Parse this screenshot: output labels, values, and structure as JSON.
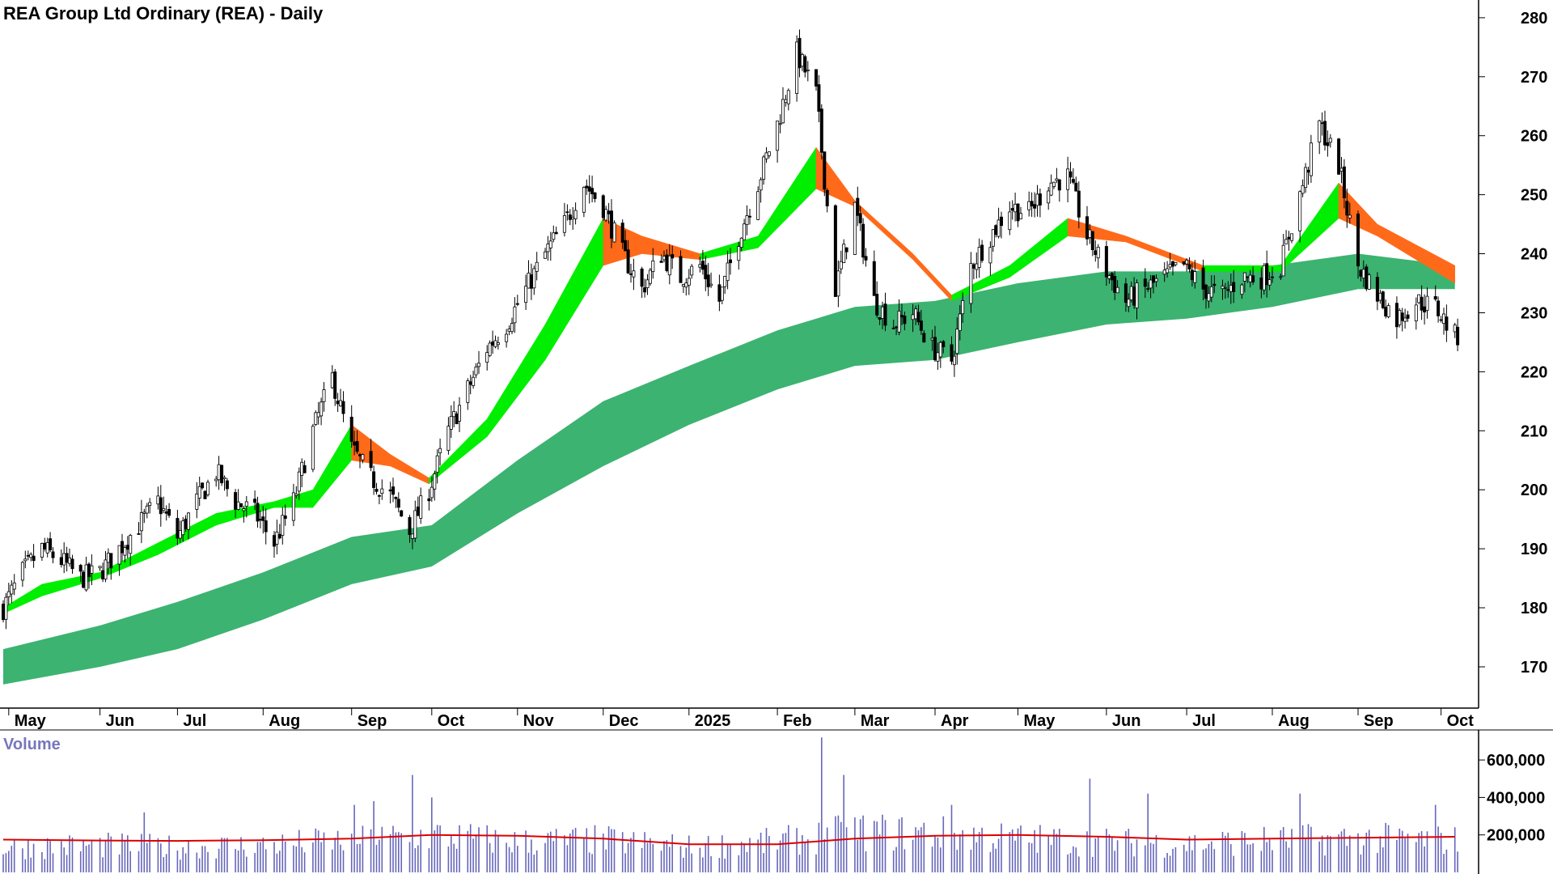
{
  "chart_title": "REA Group Ltd Ordinary (REA) - Daily",
  "volume_title": "Volume",
  "colors": {
    "background": "#ffffff",
    "candle": "#000000",
    "long_term_band": "#3cb371",
    "short_term_band_up": "#00ee00",
    "short_term_band_down": "#ff6a1a",
    "short_term_band_weak": "#ffb6b6",
    "volume_bar": "#6666bb",
    "volume_average": "#dd0000",
    "axis": "#000000"
  },
  "chart_data": [
    {
      "type": "candlestick",
      "title": "REA Group Ltd Ordinary (REA) - Daily",
      "ylim": [
        163,
        283
      ],
      "y_ticks": [
        170,
        180,
        190,
        200,
        210,
        220,
        230,
        240,
        250,
        260,
        270,
        280
      ],
      "x_tick_labels": [
        "May",
        "Jun",
        "Jul",
        "Aug",
        "Sep",
        "Oct",
        "Nov",
        "Dec",
        "2025",
        "Feb",
        "Mar",
        "Apr",
        "May",
        "Jun",
        "Jul",
        "Aug",
        "Sep",
        "Oct"
      ],
      "x_tick_dates": [
        "2024-05-01",
        "2024-06-03",
        "2024-07-01",
        "2024-08-01",
        "2024-09-02",
        "2024-10-01",
        "2024-11-01",
        "2024-12-02",
        "2025-01-02",
        "2025-02-03",
        "2025-03-03",
        "2025-04-01",
        "2025-05-01",
        "2025-06-02",
        "2025-07-01",
        "2025-08-01",
        "2025-09-01",
        "2025-10-01"
      ],
      "x_range": [
        "2024-04-29",
        "2025-10-14"
      ],
      "close_series": {
        "name": "",
        "points": [
          [
            "2024-04-29",
            180
          ],
          [
            "2024-05-06",
            186
          ],
          [
            "2024-05-13",
            190
          ],
          [
            "2024-05-20",
            188
          ],
          [
            "2024-05-27",
            185
          ],
          [
            "2024-06-03",
            186
          ],
          [
            "2024-06-10",
            190
          ],
          [
            "2024-06-17",
            194
          ],
          [
            "2024-06-24",
            198
          ],
          [
            "2024-07-01",
            192
          ],
          [
            "2024-07-08",
            198
          ],
          [
            "2024-07-15",
            203
          ],
          [
            "2024-07-22",
            198
          ],
          [
            "2024-07-29",
            196
          ],
          [
            "2024-08-05",
            191
          ],
          [
            "2024-08-12",
            198
          ],
          [
            "2024-08-19",
            210
          ],
          [
            "2024-08-26",
            219
          ],
          [
            "2024-09-02",
            207
          ],
          [
            "2024-09-09",
            202
          ],
          [
            "2024-09-16",
            199
          ],
          [
            "2024-09-23",
            193
          ],
          [
            "2024-09-30",
            200
          ],
          [
            "2024-10-07",
            210
          ],
          [
            "2024-10-14",
            217
          ],
          [
            "2024-10-21",
            224
          ],
          [
            "2024-10-28",
            228
          ],
          [
            "2024-11-04",
            234
          ],
          [
            "2024-11-11",
            240
          ],
          [
            "2024-11-18",
            245
          ],
          [
            "2024-11-25",
            252
          ],
          [
            "2024-12-02",
            248
          ],
          [
            "2024-12-09",
            240
          ],
          [
            "2024-12-16",
            234
          ],
          [
            "2024-12-23",
            240
          ],
          [
            "2024-12-30",
            236
          ],
          [
            "2025-01-06",
            238
          ],
          [
            "2025-01-13",
            232
          ],
          [
            "2025-01-20",
            243
          ],
          [
            "2025-01-27",
            252
          ],
          [
            "2025-02-03",
            262
          ],
          [
            "2025-02-10",
            274
          ],
          [
            "2025-02-17",
            267
          ],
          [
            "2025-02-24",
            234
          ],
          [
            "2025-03-03",
            248
          ],
          [
            "2025-03-10",
            232
          ],
          [
            "2025-03-17",
            228
          ],
          [
            "2025-03-24",
            230
          ],
          [
            "2025-03-31",
            224
          ],
          [
            "2025-04-07",
            222
          ],
          [
            "2025-04-14",
            238
          ],
          [
            "2025-04-21",
            243
          ],
          [
            "2025-04-28",
            248
          ],
          [
            "2025-05-05",
            247
          ],
          [
            "2025-05-12",
            252
          ],
          [
            "2025-05-19",
            253
          ],
          [
            "2025-05-26",
            243
          ],
          [
            "2025-06-02",
            237
          ],
          [
            "2025-06-09",
            232
          ],
          [
            "2025-06-16",
            234
          ],
          [
            "2025-06-23",
            236
          ],
          [
            "2025-06-30",
            238
          ],
          [
            "2025-07-07",
            234
          ],
          [
            "2025-07-14",
            233
          ],
          [
            "2025-07-21",
            236
          ],
          [
            "2025-07-28",
            236
          ],
          [
            "2025-08-04",
            238
          ],
          [
            "2025-08-11",
            250
          ],
          [
            "2025-08-18",
            262
          ],
          [
            "2025-08-25",
            255
          ],
          [
            "2025-09-01",
            238
          ],
          [
            "2025-09-08",
            233
          ],
          [
            "2025-09-15",
            229
          ],
          [
            "2025-09-22",
            232
          ],
          [
            "2025-09-29",
            231
          ],
          [
            "2025-10-06",
            226
          ]
        ]
      },
      "long_term_band": {
        "name": "",
        "points": [
          [
            "2024-04-29",
            173,
            167
          ],
          [
            "2024-06-03",
            177,
            170
          ],
          [
            "2024-07-01",
            181,
            173
          ],
          [
            "2024-08-01",
            186,
            178
          ],
          [
            "2024-09-02",
            192,
            184
          ],
          [
            "2024-10-01",
            194,
            187
          ],
          [
            "2024-11-01",
            205,
            196
          ],
          [
            "2024-12-02",
            215,
            204
          ],
          [
            "2025-01-02",
            221,
            211
          ],
          [
            "2025-02-03",
            227,
            217
          ],
          [
            "2025-03-03",
            231,
            221
          ],
          [
            "2025-04-01",
            232,
            222
          ],
          [
            "2025-05-01",
            235,
            225
          ],
          [
            "2025-06-02",
            237,
            228
          ],
          [
            "2025-07-01",
            237,
            229
          ],
          [
            "2025-08-01",
            238,
            231
          ],
          [
            "2025-09-01",
            240,
            234
          ],
          [
            "2025-10-06",
            238,
            234
          ]
        ]
      },
      "short_term_band": {
        "name": "",
        "points": [
          [
            "2024-04-29",
            180,
            179
          ],
          [
            "2024-05-13",
            184,
            182
          ],
          [
            "2024-06-03",
            186,
            185
          ],
          [
            "2024-06-24",
            191,
            189
          ],
          [
            "2024-07-15",
            196,
            194
          ],
          [
            "2024-08-05",
            198,
            197
          ],
          [
            "2024-08-19",
            200,
            197
          ],
          [
            "2024-09-02",
            211,
            205
          ],
          [
            "2024-09-16",
            206,
            204
          ],
          [
            "2024-09-30",
            202,
            201
          ],
          [
            "2024-10-21",
            212,
            209
          ],
          [
            "2024-11-11",
            228,
            222
          ],
          [
            "2024-12-02",
            246,
            238
          ],
          [
            "2024-12-16",
            243,
            240
          ],
          [
            "2025-01-06",
            240,
            239
          ],
          [
            "2025-01-27",
            243,
            241
          ],
          [
            "2025-02-17",
            258,
            251
          ],
          [
            "2025-03-03",
            249,
            248
          ],
          [
            "2025-03-24",
            240,
            239
          ],
          [
            "2025-04-07",
            233,
            232
          ],
          [
            "2025-04-28",
            238,
            236
          ],
          [
            "2025-05-19",
            246,
            243
          ],
          [
            "2025-06-09",
            243,
            242
          ],
          [
            "2025-07-07",
            238,
            237
          ],
          [
            "2025-08-04",
            238,
            237
          ],
          [
            "2025-08-25",
            252,
            246
          ],
          [
            "2025-09-08",
            245,
            243
          ],
          [
            "2025-10-06",
            238,
            235
          ]
        ]
      }
    },
    {
      "type": "bar",
      "title": "Volume",
      "y_ticks": [
        200000,
        400000,
        600000
      ],
      "y_tick_labels": [
        "200,000",
        "400,000",
        "600,000"
      ],
      "ylim": [
        0,
        760000
      ],
      "x_range": [
        "2024-04-29",
        "2025-10-14"
      ],
      "volume_profile": [
        [
          "2024-04-29",
          150000
        ],
        [
          "2024-06-03",
          160000
        ],
        [
          "2024-07-01",
          150000
        ],
        [
          "2024-08-01",
          160000
        ],
        [
          "2024-09-02",
          190000
        ],
        [
          "2024-10-01",
          220000
        ],
        [
          "2024-11-01",
          180000
        ],
        [
          "2024-12-02",
          190000
        ],
        [
          "2025-01-02",
          150000
        ],
        [
          "2025-02-03",
          180000
        ],
        [
          "2025-03-03",
          240000
        ],
        [
          "2025-04-01",
          230000
        ],
        [
          "2025-05-01",
          200000
        ],
        [
          "2025-06-02",
          180000
        ],
        [
          "2025-07-01",
          170000
        ],
        [
          "2025-08-01",
          190000
        ],
        [
          "2025-09-01",
          200000
        ],
        [
          "2025-10-06",
          190000
        ]
      ],
      "volume_spikes": [
        [
          "2024-06-19",
          320000
        ],
        [
          "2024-09-03",
          360000
        ],
        [
          "2024-09-10",
          380000
        ],
        [
          "2024-09-24",
          520000
        ],
        [
          "2024-10-01",
          400000
        ],
        [
          "2025-02-19",
          720000
        ],
        [
          "2025-02-27",
          520000
        ],
        [
          "2025-04-07",
          360000
        ],
        [
          "2025-05-27",
          500000
        ],
        [
          "2025-06-17",
          420000
        ],
        [
          "2025-08-11",
          420000
        ],
        [
          "2025-09-29",
          360000
        ]
      ],
      "average_line": [
        [
          "2024-04-29",
          175000
        ],
        [
          "2024-06-03",
          170000
        ],
        [
          "2024-07-01",
          168000
        ],
        [
          "2024-08-01",
          172000
        ],
        [
          "2024-09-02",
          180000
        ],
        [
          "2024-10-01",
          200000
        ],
        [
          "2024-11-01",
          195000
        ],
        [
          "2024-12-02",
          180000
        ],
        [
          "2025-01-02",
          150000
        ],
        [
          "2025-02-03",
          150000
        ],
        [
          "2025-03-03",
          180000
        ],
        [
          "2025-04-01",
          195000
        ],
        [
          "2025-05-01",
          200000
        ],
        [
          "2025-06-02",
          190000
        ],
        [
          "2025-07-01",
          175000
        ],
        [
          "2025-08-01",
          180000
        ],
        [
          "2025-09-01",
          185000
        ],
        [
          "2025-10-06",
          190000
        ]
      ]
    }
  ]
}
